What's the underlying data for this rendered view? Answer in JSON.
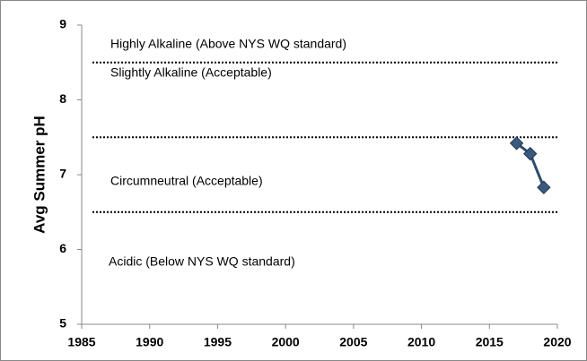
{
  "chart_data": {
    "type": "line",
    "ylabel": "Avg Summer pH",
    "x": [
      2017,
      2018,
      2019
    ],
    "series": [
      {
        "name": "Avg Summer pH",
        "color": "#3a5a80",
        "values": [
          7.42,
          7.28,
          6.83
        ]
      }
    ],
    "xlim": [
      1985,
      2020
    ],
    "xticks": [
      1985,
      1990,
      1995,
      2000,
      2005,
      2010,
      2015,
      2020
    ],
    "ylim": [
      5,
      9
    ],
    "yticks": [
      5,
      6,
      7,
      8,
      9
    ],
    "reference_lines": [
      8.5,
      7.5,
      6.5
    ],
    "annotations": [
      "Highly Alkaline (Above NYS WQ standard)",
      "Slightly Alkaline (Acceptable)",
      "Circumneutral (Acceptable)",
      "Acidic (Below NYS WQ standard)"
    ]
  }
}
